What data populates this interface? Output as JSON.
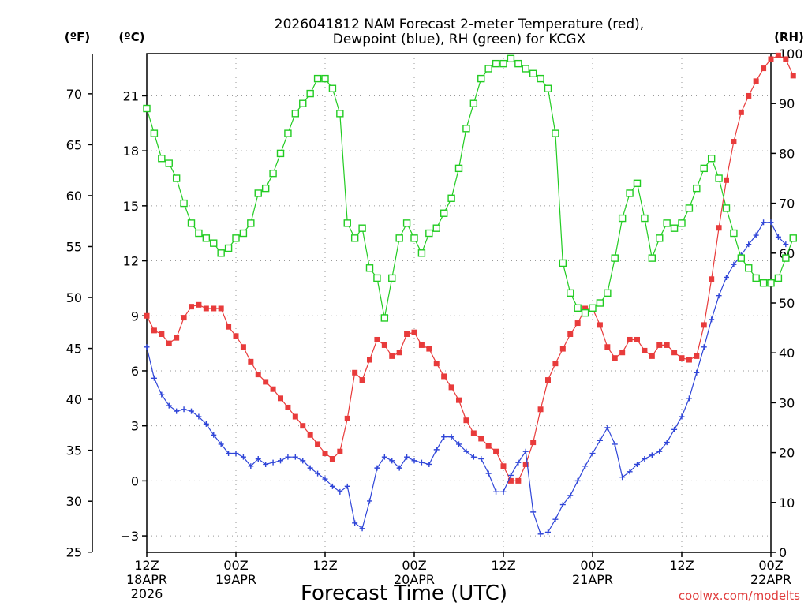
{
  "chart_data": {
    "type": "line",
    "title": "2026041812 NAM Forecast 2-meter Temperature (red),",
    "subtitle": "Dewpoint (blue), RH (green) for KCGX",
    "xlabel": "Forecast Time (UTC)",
    "credit": "coolwx.com/modelts",
    "units": {
      "fahrenheit": "(ºF)",
      "celsius": "(ºC)",
      "rh": "(RH)"
    },
    "x_range_hours": [
      0,
      84
    ],
    "y_celsius_range": [
      -3.9,
      23.3
    ],
    "y_rh_range": [
      0,
      100
    ],
    "x_ticks": [
      {
        "hour": 0,
        "lines": [
          "12Z",
          "18APR",
          "2026"
        ]
      },
      {
        "hour": 12,
        "lines": [
          "00Z",
          "19APR"
        ]
      },
      {
        "hour": 24,
        "lines": [
          "12Z"
        ]
      },
      {
        "hour": 36,
        "lines": [
          "00Z",
          "20APR"
        ]
      },
      {
        "hour": 48,
        "lines": [
          "12Z"
        ]
      },
      {
        "hour": 60,
        "lines": [
          "00Z",
          "21APR"
        ]
      },
      {
        "hour": 72,
        "lines": [
          "12Z"
        ]
      },
      {
        "hour": 84,
        "lines": [
          "00Z",
          "22APR"
        ]
      }
    ],
    "celsius_ticks": [
      "−3",
      "0",
      "3",
      "6",
      "9",
      "12",
      "15",
      "18",
      "21"
    ],
    "fahrenheit_ticks": [
      "25",
      "30",
      "35",
      "40",
      "45",
      "50",
      "55",
      "60",
      "65",
      "70"
    ],
    "rh_ticks": [
      "0",
      "10",
      "20",
      "30",
      "40",
      "50",
      "60",
      "70",
      "80",
      "90",
      "100"
    ],
    "hour_step": 1,
    "series": [
      {
        "name": "Temperature",
        "unit": "C",
        "color": "#e83b3b",
        "marker": "filled-square",
        "values": [
          9.0,
          8.2,
          8.0,
          7.5,
          7.8,
          8.9,
          9.5,
          9.6,
          9.4,
          9.4,
          9.4,
          8.4,
          7.9,
          7.3,
          6.5,
          5.8,
          5.4,
          5.0,
          4.5,
          4.0,
          3.5,
          3.0,
          2.5,
          2.0,
          1.5,
          1.2,
          1.6,
          3.4,
          5.9,
          5.5,
          6.6,
          7.7,
          7.4,
          6.8,
          7.0,
          8.0,
          8.1,
          7.4,
          7.2,
          6.4,
          5.7,
          5.1,
          4.4,
          3.3,
          2.6,
          2.3,
          1.9,
          1.6,
          0.8,
          0.0,
          0.0,
          0.9,
          2.1,
          3.9,
          5.5,
          6.4,
          7.2,
          8.0,
          8.6,
          9.4,
          9.4,
          8.5,
          7.3,
          6.7,
          7.0,
          7.7,
          7.7,
          7.1,
          6.8,
          7.4,
          7.4,
          7.0,
          6.7,
          6.6,
          6.8,
          8.5,
          11.0,
          13.8,
          16.4,
          18.5,
          20.1,
          21.0,
          21.8,
          22.5,
          23.0,
          23.2,
          23.0,
          22.1
        ]
      },
      {
        "name": "Dewpoint",
        "unit": "C",
        "color": "#2f45d8",
        "marker": "plus",
        "values": [
          7.3,
          5.6,
          4.7,
          4.1,
          3.8,
          3.9,
          3.8,
          3.5,
          3.1,
          2.5,
          2.0,
          1.5,
          1.5,
          1.3,
          0.8,
          1.2,
          0.9,
          1.0,
          1.1,
          1.3,
          1.3,
          1.1,
          0.7,
          0.4,
          0.1,
          -0.3,
          -0.6,
          -0.3,
          -2.3,
          -2.6,
          -1.1,
          0.7,
          1.3,
          1.1,
          0.7,
          1.3,
          1.1,
          1.0,
          0.9,
          1.7,
          2.4,
          2.4,
          2.0,
          1.6,
          1.3,
          1.2,
          0.4,
          -0.6,
          -0.6,
          0.3,
          1.0,
          1.6,
          -1.7,
          -2.9,
          -2.8,
          -2.1,
          -1.3,
          -0.8,
          0.0,
          0.8,
          1.5,
          2.2,
          2.9,
          2.0,
          0.2,
          0.5,
          0.9,
          1.2,
          1.4,
          1.6,
          2.1,
          2.8,
          3.5,
          4.5,
          5.9,
          7.3,
          8.8,
          10.1,
          11.1,
          11.8,
          12.3,
          12.9,
          13.4,
          14.1,
          14.1,
          13.3,
          12.9
        ]
      },
      {
        "name": "RH",
        "unit": "%",
        "color": "#22cc22",
        "marker": "open-square",
        "values": [
          89,
          84,
          79,
          78,
          75,
          70,
          66,
          64,
          63,
          62,
          60,
          61,
          63,
          64,
          66,
          72,
          73,
          76,
          80,
          84,
          88,
          90,
          92,
          95,
          95,
          93,
          88,
          66,
          63,
          65,
          57,
          55,
          47,
          55,
          63,
          66,
          63,
          60,
          64,
          65,
          68,
          71,
          77,
          85,
          90,
          95,
          97,
          98,
          98,
          99,
          98,
          97,
          96,
          95,
          93,
          84,
          58,
          52,
          49,
          48,
          49,
          50,
          52,
          59,
          67,
          72,
          74,
          67,
          59,
          63,
          66,
          65,
          66,
          69,
          73,
          77,
          79,
          75,
          69,
          64,
          59,
          57,
          55,
          54,
          54,
          55,
          59,
          63
        ]
      }
    ]
  }
}
